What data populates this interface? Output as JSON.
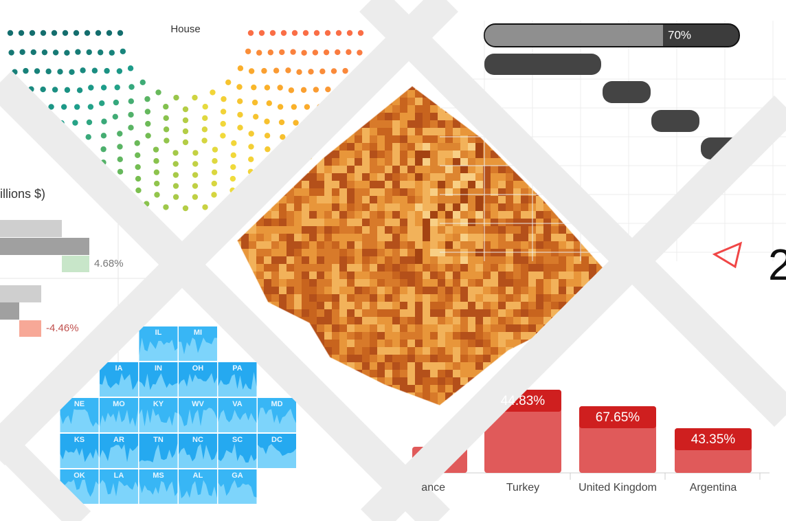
{
  "house": {
    "title": "House"
  },
  "revenue": {
    "title": "illions $)",
    "labels": [
      "4.68%",
      "-4.46%"
    ]
  },
  "progress": {
    "label": "70%"
  },
  "tiles": {
    "rows": [
      [
        "IL",
        "MI"
      ],
      [
        "IA",
        "IN",
        "OH",
        "PA"
      ],
      [
        "NE",
        "MO",
        "KY",
        "WV",
        "VA",
        "MD"
      ],
      [
        "KS",
        "AR",
        "TN",
        "NC",
        "SC",
        "DC"
      ],
      [
        "OK",
        "LA",
        "MS",
        "AL",
        "GA"
      ]
    ]
  },
  "gauge": {
    "value_text": "2"
  },
  "bars": {
    "categories": [
      "ance",
      "Turkey",
      "United Kingdom",
      "Argentina"
    ],
    "labels": [
      "44.83%",
      "67.65%",
      "43.35%"
    ]
  }
}
